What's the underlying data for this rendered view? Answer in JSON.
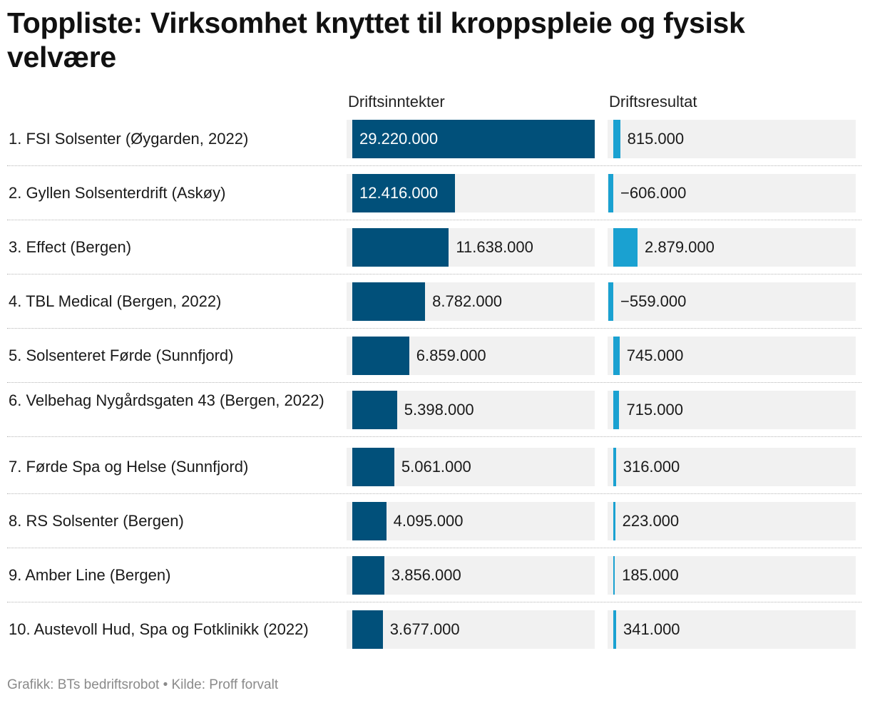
{
  "title": "Toppliste: Virksomhet knyttet til kroppspleie og fysisk velvære",
  "footer": "Grafikk: BTs bedriftsrobot • Kilde: Proff forvalt",
  "colors": {
    "revenue": "#01507a",
    "result": "#1aa1d1",
    "track": "#f1f1f1"
  },
  "chart_data": {
    "type": "table",
    "columns": [
      "Driftsinntekter",
      "Driftsresultat"
    ],
    "rows": [
      {
        "label": "1. FSI Solsenter (Øygarden, 2022)",
        "revenue": 29220000,
        "revenue_text": "29.220.000",
        "result": 815000,
        "result_text": "815.000"
      },
      {
        "label": "2. Gyllen Solsenterdrift (Askøy)",
        "revenue": 12416000,
        "revenue_text": "12.416.000",
        "result": -606000,
        "result_text": "−606.000"
      },
      {
        "label": "3. Effect (Bergen)",
        "revenue": 11638000,
        "revenue_text": "11.638.000",
        "result": 2879000,
        "result_text": "2.879.000"
      },
      {
        "label": "4. TBL Medical (Bergen, 2022)",
        "revenue": 8782000,
        "revenue_text": "8.782.000",
        "result": -559000,
        "result_text": "−559.000"
      },
      {
        "label": "5. Solsenteret Førde (Sunnfjord)",
        "revenue": 6859000,
        "revenue_text": "6.859.000",
        "result": 745000,
        "result_text": "745.000"
      },
      {
        "label": "6. Velbehag Nygårdsgaten 43 (Bergen, 2022)",
        "revenue": 5398000,
        "revenue_text": "5.398.000",
        "result": 715000,
        "result_text": "715.000"
      },
      {
        "label": "7. Førde Spa og Helse (Sunnfjord)",
        "revenue": 5061000,
        "revenue_text": "5.061.000",
        "result": 316000,
        "result_text": "316.000"
      },
      {
        "label": "8. RS Solsenter (Bergen)",
        "revenue": 4095000,
        "revenue_text": "4.095.000",
        "result": 223000,
        "result_text": "223.000"
      },
      {
        "label": "9. Amber Line (Bergen)",
        "revenue": 3856000,
        "revenue_text": "3.856.000",
        "result": 185000,
        "result_text": "185.000"
      },
      {
        "label": "10. Austevoll Hud, Spa og Fotklinikk (2022)",
        "revenue": 3677000,
        "revenue_text": "3.677.000",
        "result": 341000,
        "result_text": "341.000"
      }
    ]
  }
}
